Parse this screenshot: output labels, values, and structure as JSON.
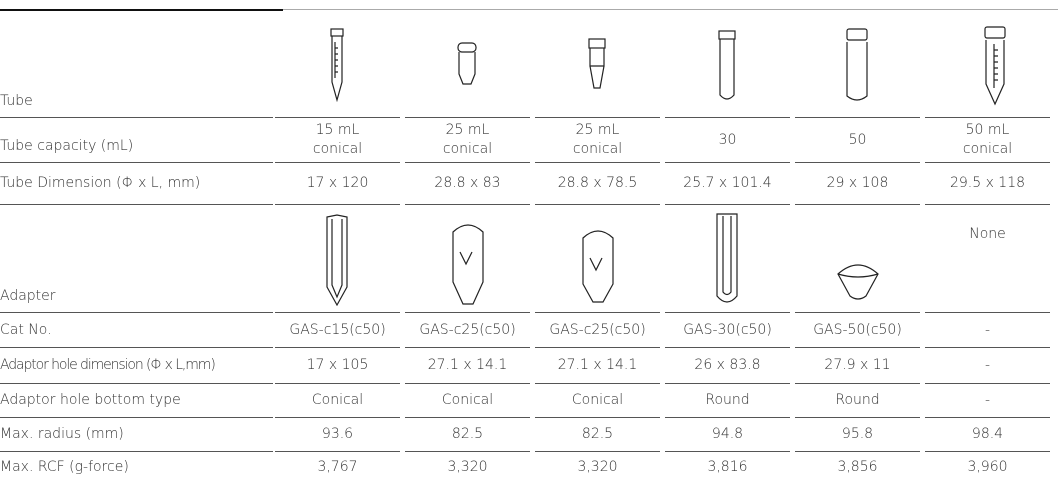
{
  "table": {
    "tube_label": "Tube",
    "adapter_label": "Adapter",
    "adapter_none": "None",
    "rows": [
      {
        "label": "Tube capacity (mL)",
        "cells": [
          "15 mL conical",
          "25 mL conical",
          "25 mL conical",
          "30",
          "50",
          "50 mL conical"
        ]
      },
      {
        "label": "Tube Dimension (Φ x L, mm)",
        "cells": [
          "17 x 120",
          "28.8 x 83",
          "28.8 x 78.5",
          "25.7 x 101.4",
          "29 x 108",
          "29.5 x 118"
        ]
      },
      {
        "label": "Cat No.",
        "cells": [
          "GAS-c15(c50)",
          "GAS-c25(c50)",
          "GAS-c25(c50)",
          "GAS-30(c50)",
          "GAS-50(c50)",
          "-"
        ]
      },
      {
        "label": "Adaptor hole dimension (Φ x L,mm)",
        "cells": [
          "17 x 105",
          "27.1 x 14.1",
          "27.1 x 14.1",
          "26 x 83.8",
          "27.9 x 11",
          "-"
        ]
      },
      {
        "label": "Adaptor hole bottom type",
        "cells": [
          "Conical",
          "Conical",
          "Conical",
          "Round",
          "Round",
          "-"
        ]
      },
      {
        "label": "Max. radius (mm)",
        "cells": [
          "93.6",
          "82.5",
          "82.5",
          "94.8",
          "95.8",
          "98.4"
        ]
      },
      {
        "label": "Max. RCF (g-force)",
        "cells": [
          "3,767",
          "3,320",
          "3,320",
          "3,816",
          "3,856",
          "3,960"
        ]
      }
    ]
  }
}
